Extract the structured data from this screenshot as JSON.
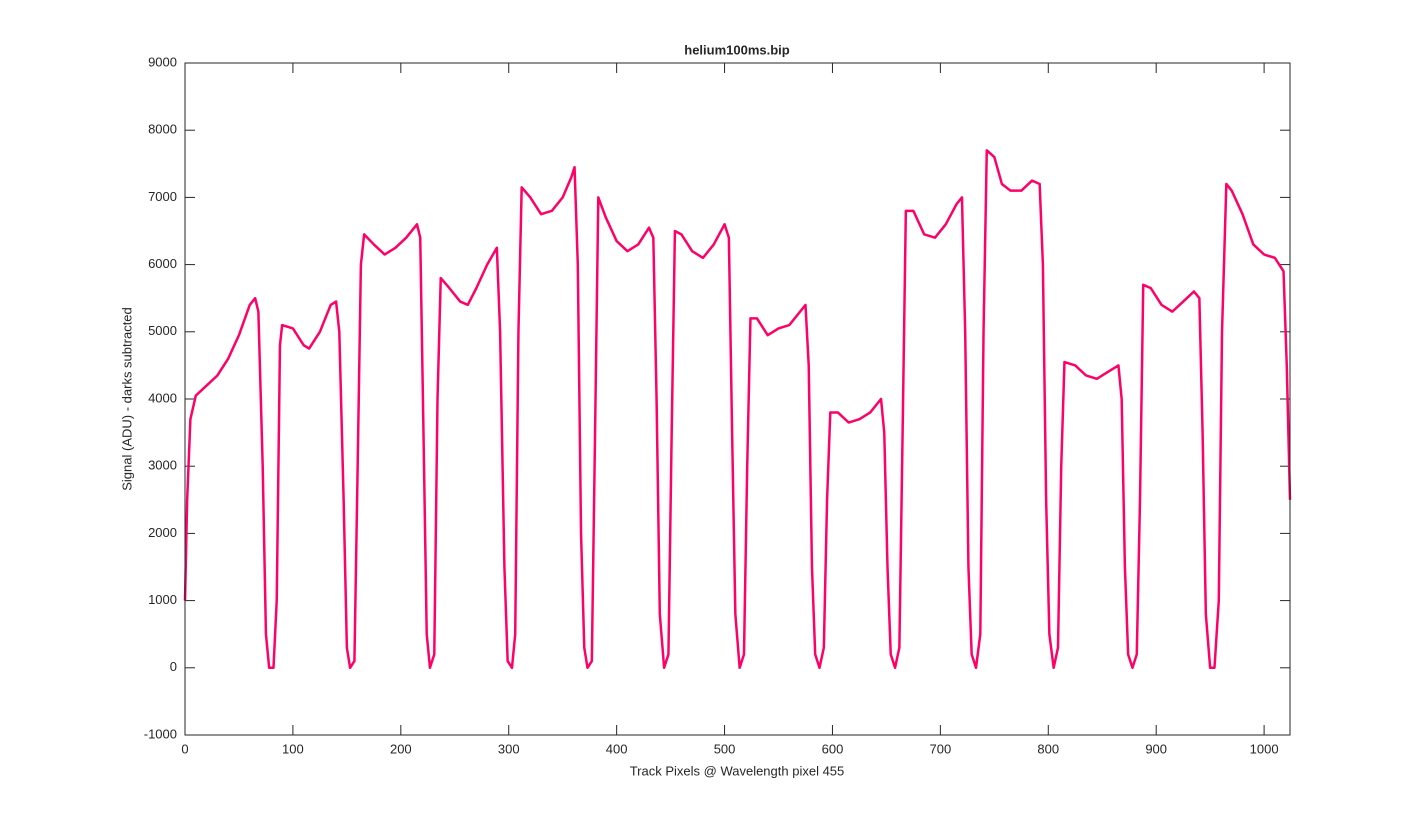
{
  "chart_data": {
    "type": "line",
    "title": "helium100ms.bip",
    "xlabel": "Track Pixels @ Wavelength pixel 455",
    "ylabel": "Signal (ADU) - darks subtracted",
    "x": [
      0,
      2,
      5,
      10,
      20,
      30,
      40,
      50,
      60,
      65,
      68,
      72,
      75,
      78,
      82,
      85,
      88,
      90,
      100,
      110,
      115,
      125,
      135,
      140,
      143,
      147,
      150,
      153,
      157,
      160,
      163,
      166,
      175,
      185,
      195,
      205,
      215,
      218,
      221,
      224,
      227,
      231,
      234,
      237,
      245,
      255,
      262,
      270,
      280,
      289,
      292,
      296,
      299,
      303,
      306,
      309,
      312,
      320,
      330,
      340,
      350,
      358,
      361,
      364,
      367,
      370,
      373,
      377,
      380,
      383,
      390,
      400,
      410,
      420,
      430,
      434,
      437,
      440,
      444,
      448,
      451,
      454,
      460,
      470,
      480,
      490,
      500,
      504,
      507,
      510,
      514,
      518,
      521,
      524,
      530,
      540,
      550,
      560,
      570,
      575,
      578,
      581,
      584,
      588,
      592,
      595,
      598,
      605,
      615,
      625,
      635,
      645,
      648,
      651,
      654,
      658,
      662,
      665,
      668,
      675,
      685,
      695,
      705,
      715,
      720,
      723,
      726,
      729,
      733,
      737,
      740,
      743,
      750,
      757,
      765,
      775,
      785,
      792,
      795,
      798,
      801,
      805,
      809,
      812,
      815,
      825,
      835,
      845,
      855,
      865,
      868,
      871,
      874,
      878,
      882,
      885,
      888,
      895,
      905,
      915,
      925,
      935,
      940,
      943,
      946,
      950,
      954,
      958,
      961,
      965,
      970,
      980,
      990,
      1000,
      1010,
      1018,
      1021,
      1024
    ],
    "series": [
      {
        "color": "#ff0066",
        "values": [
          1000,
          2500,
          3700,
          4050,
          4200,
          4350,
          4600,
          4950,
          5400,
          5500,
          5300,
          3000,
          500,
          0,
          0,
          1000,
          4800,
          5100,
          5050,
          4800,
          4750,
          5000,
          5400,
          5450,
          5000,
          2500,
          300,
          0,
          100,
          3000,
          6000,
          6450,
          6300,
          6150,
          6250,
          6400,
          6600,
          6400,
          3500,
          500,
          0,
          200,
          4000,
          5800,
          5650,
          5450,
          5400,
          5650,
          6000,
          6250,
          5000,
          1500,
          100,
          0,
          500,
          5000,
          7150,
          7000,
          6750,
          6800,
          7000,
          7300,
          7450,
          6000,
          2000,
          300,
          0,
          100,
          3500,
          7000,
          6700,
          6350,
          6200,
          6300,
          6550,
          6400,
          4000,
          800,
          0,
          200,
          3500,
          6500,
          6450,
          6200,
          6100,
          6300,
          6600,
          6400,
          3500,
          800,
          0,
          200,
          3000,
          5200,
          5200,
          4950,
          5050,
          5100,
          5300,
          5400,
          4500,
          1500,
          200,
          0,
          300,
          2500,
          3800,
          3800,
          3650,
          3700,
          3800,
          4000,
          3500,
          1500,
          200,
          0,
          300,
          3500,
          6800,
          6800,
          6450,
          6400,
          6600,
          6900,
          7000,
          5000,
          1500,
          200,
          0,
          500,
          5000,
          7700,
          7600,
          7200,
          7100,
          7100,
          7250,
          7200,
          6000,
          2500,
          500,
          0,
          300,
          3000,
          4550,
          4500,
          4350,
          4300,
          4400,
          4500,
          4000,
          1500,
          200,
          0,
          200,
          2500,
          5700,
          5650,
          5400,
          5300,
          5450,
          5600,
          5500,
          3500,
          800,
          0,
          0,
          1000,
          5000,
          7200,
          7100,
          6750,
          6300,
          6150,
          6100,
          5900,
          4500,
          2500
        ]
      }
    ],
    "xlim": [
      0,
      1024
    ],
    "ylim": [
      -1000,
      9000
    ],
    "xticks": [
      0,
      100,
      200,
      300,
      400,
      500,
      600,
      700,
      800,
      900,
      1000
    ],
    "yticks": [
      -1000,
      0,
      1000,
      2000,
      3000,
      4000,
      5000,
      6000,
      7000,
      8000,
      9000
    ],
    "grid": false
  }
}
